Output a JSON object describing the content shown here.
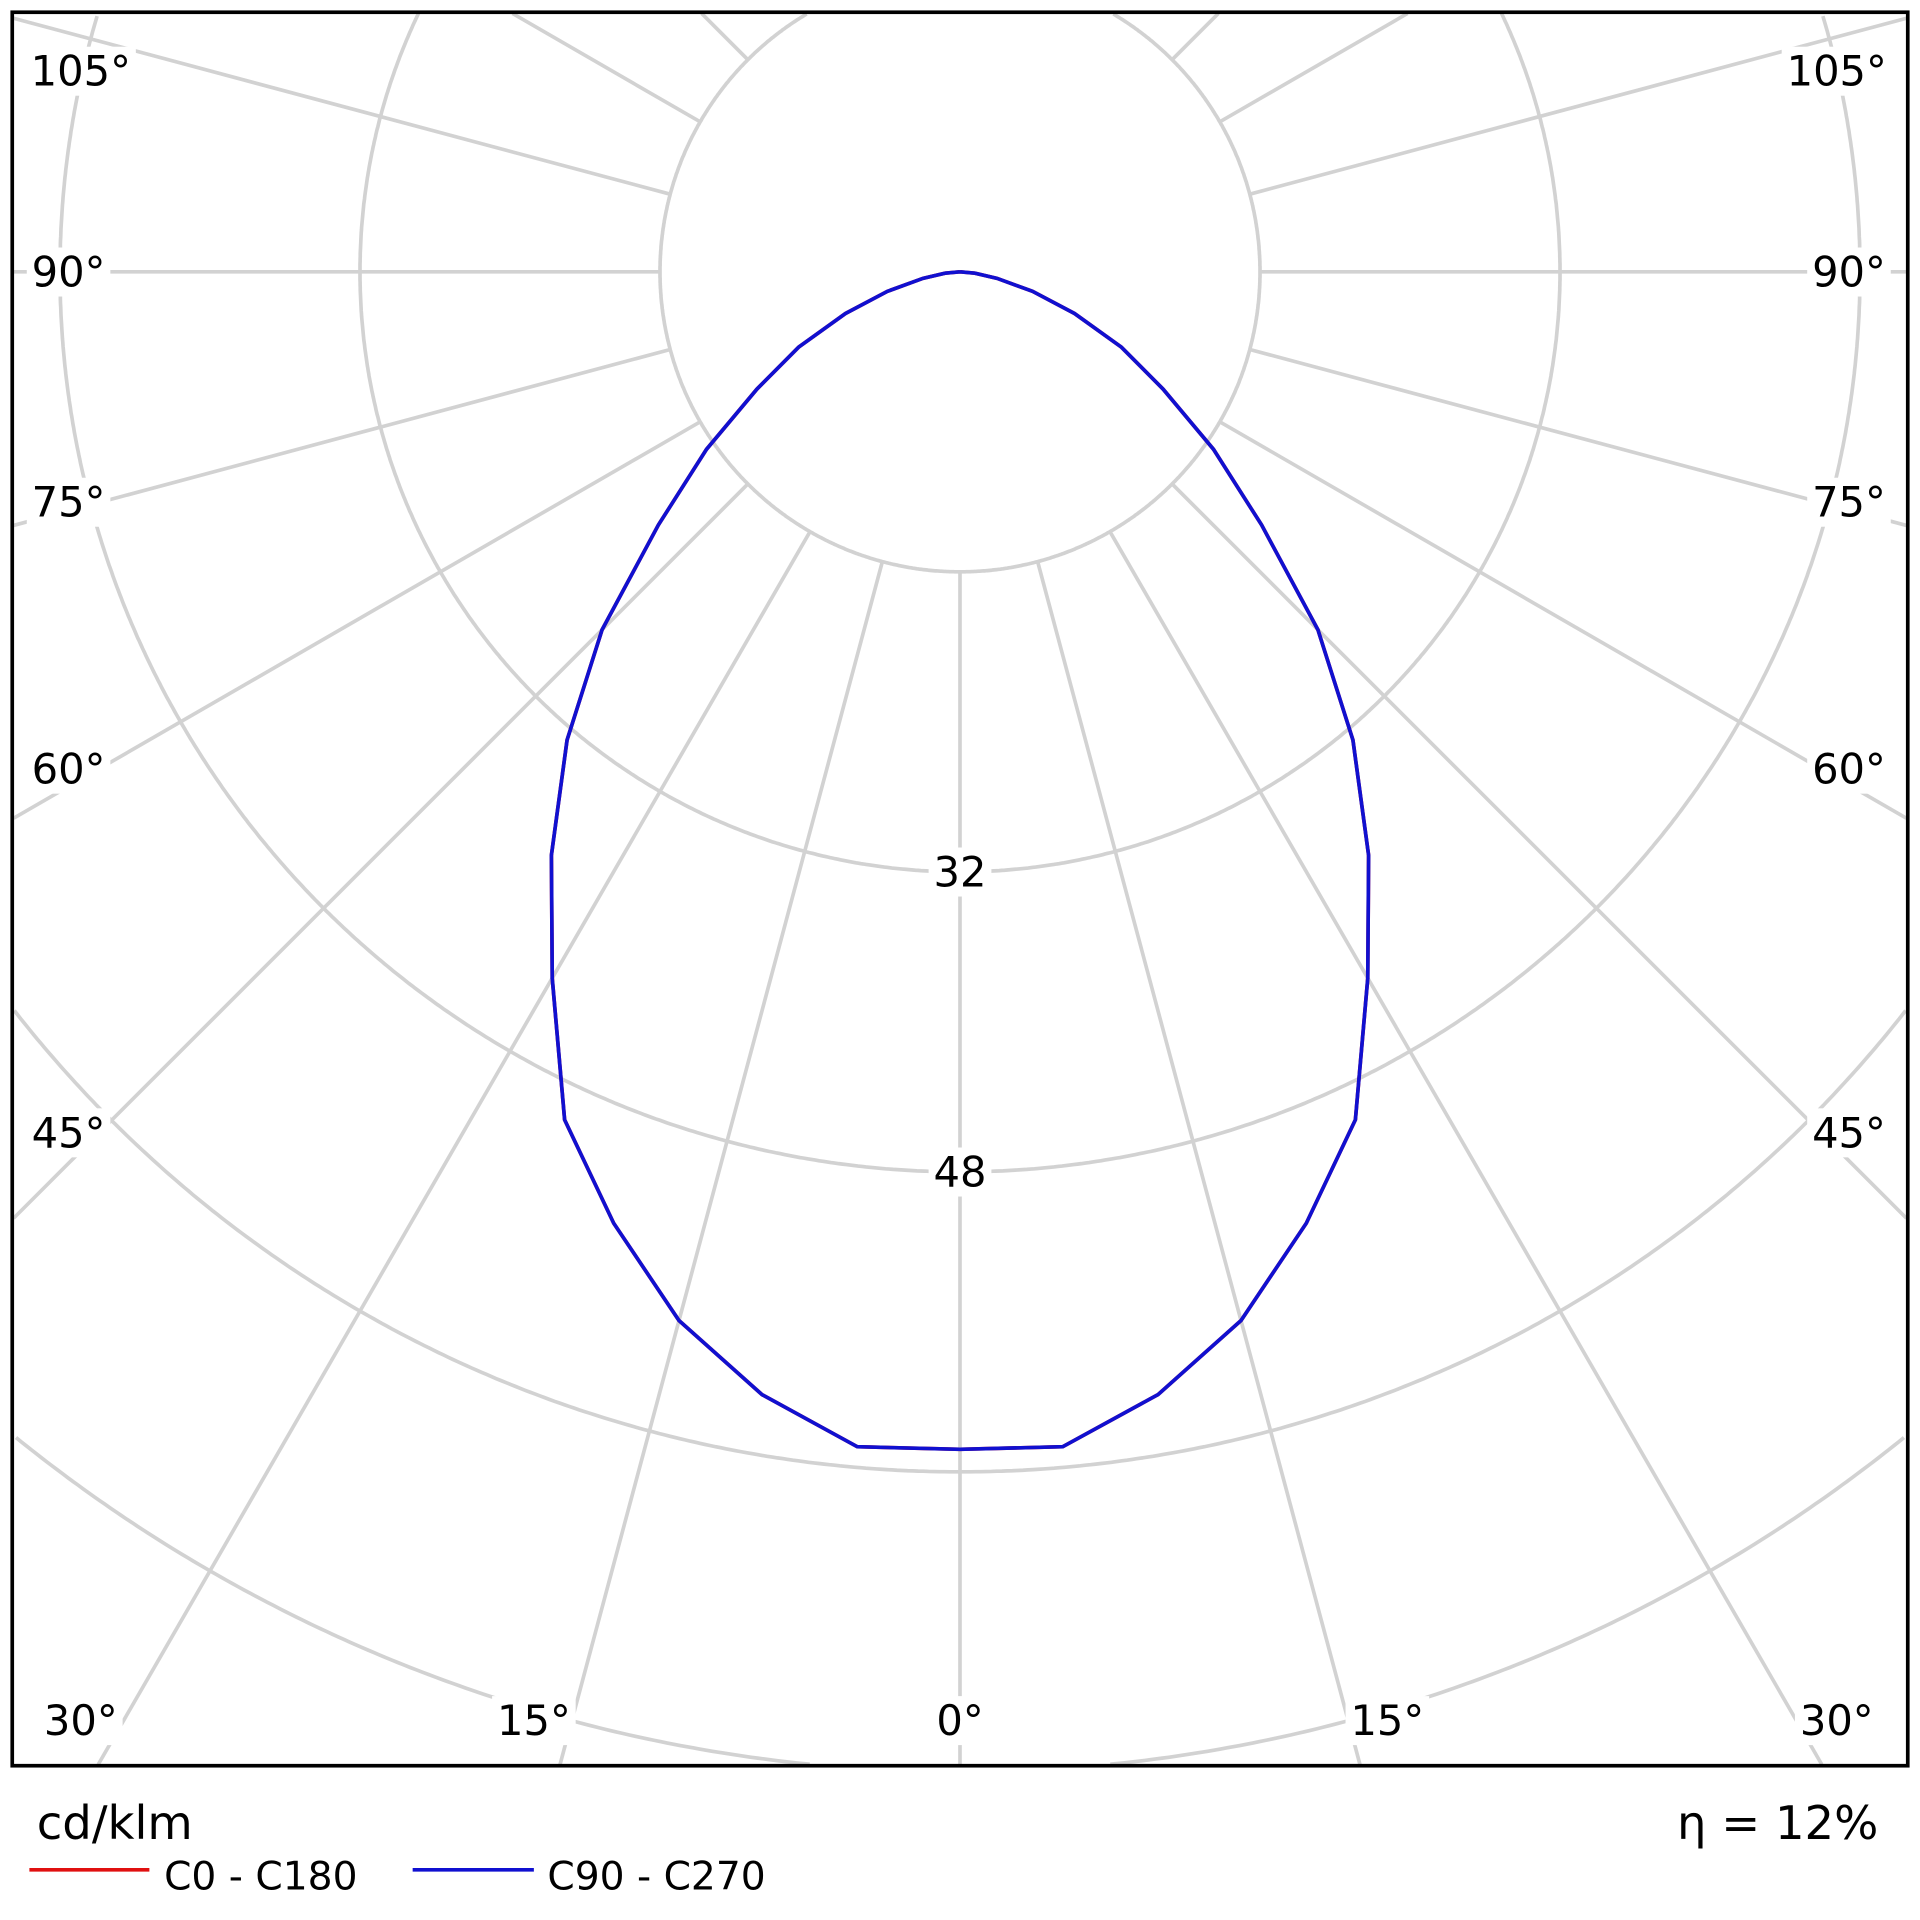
{
  "chart_data": {
    "type": "polar",
    "unit_label": "cd/klm",
    "efficiency_label": "η = 12%",
    "radial_ticks": [
      {
        "value": 32,
        "label": "32"
      },
      {
        "value": 48,
        "label": "48"
      }
    ],
    "radial_gridlines": [
      16,
      32,
      48,
      64,
      80,
      96,
      112
    ],
    "angle_labels": {
      "left": [
        "105°",
        "90°",
        "75°",
        "60°",
        "45°",
        "30°",
        "15°"
      ],
      "bottom_center": "0°",
      "right": [
        "105°",
        "90°",
        "75°",
        "60°",
        "45°",
        "30°",
        "15°"
      ]
    },
    "angle_gridline_step_deg": 15,
    "grid": true,
    "legend_placement": "bottom-left",
    "series": [
      {
        "name": "C0 - C180",
        "color": "#e01010",
        "angles_deg": [
          0,
          5,
          10,
          15,
          20,
          25,
          30,
          35,
          40,
          45,
          50,
          55,
          60,
          65,
          70,
          75,
          80,
          85,
          90
        ],
        "values": [
          62.8,
          62.9,
          60.8,
          57.9,
          54.0,
          49.9,
          43.5,
          38.0,
          32.6,
          27.0,
          21.0,
          16.5,
          12.5,
          9.5,
          6.5,
          4.0,
          2.0,
          0.8,
          0
        ]
      },
      {
        "name": "C90 - C270",
        "color": "#1010d0",
        "angles_deg": [
          0,
          5,
          10,
          15,
          20,
          25,
          30,
          35,
          40,
          45,
          50,
          55,
          60,
          65,
          70,
          75,
          80,
          85,
          90
        ],
        "values": [
          62.8,
          62.9,
          60.8,
          57.9,
          54.0,
          49.9,
          43.5,
          38.0,
          32.6,
          27.0,
          21.0,
          16.5,
          12.5,
          9.5,
          6.5,
          4.0,
          2.0,
          0.8,
          0
        ]
      }
    ]
  }
}
